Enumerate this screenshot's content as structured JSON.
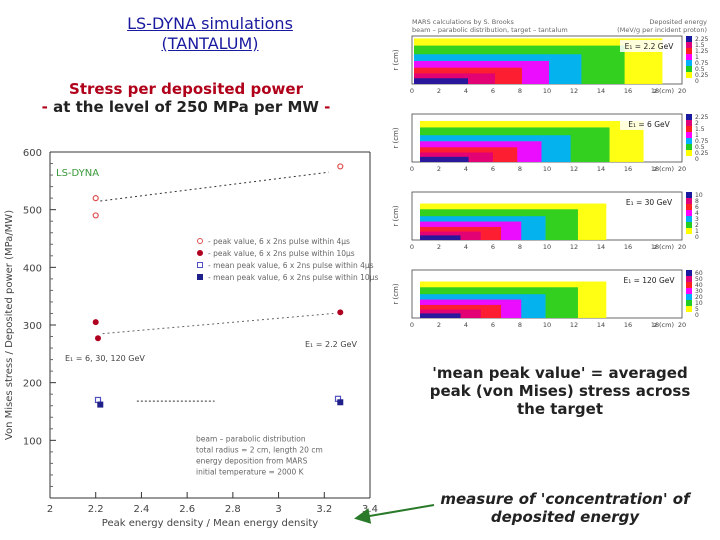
{
  "slide": {
    "title_line1": "LS-DYNA simulations",
    "title_line2": "(TANTALUM)",
    "subtitle_line1": "Stress per deposited power",
    "subtitle_line2_prefix": "- ",
    "subtitle_line2": "at the level of 250 MPa per MW",
    "subtitle_line2_suffix": " -",
    "note_mean_peak": "'mean peak value' = averaged peak (von Mises) stress across the target",
    "note_concentration": "measure of 'concentration' of deposited energy",
    "arrow_color": "#2a7a2a"
  },
  "chart_data": {
    "type": "scatter",
    "title": "",
    "xlabel": "Peak energy density / Mean energy density",
    "ylabel": "Von Mises stress / Deposited power (MPa/MW)",
    "xlim": [
      2,
      3.4
    ],
    "ylim": [
      0,
      600
    ],
    "x_ticks": [
      "2",
      "2.2",
      "2.4",
      "2.6",
      "2.8",
      "3",
      "3.2",
      "3.4"
    ],
    "y_ticks": [
      "100",
      "200",
      "300",
      "400",
      "500",
      "600"
    ],
    "y_ticks_values": [
      100,
      200,
      300,
      400,
      500,
      600
    ],
    "x_ticks_values": [
      2,
      2.2,
      2.4,
      2.6,
      2.8,
      3,
      3.2,
      3.4
    ],
    "code_label": "LS-DYNA",
    "series": [
      {
        "name": "peak value, 6 x 2ns pulse within 4µs",
        "marker": "open-circle",
        "color": "#e05050",
        "points": [
          {
            "x": 2.2,
            "y": 520
          },
          {
            "x": 2.2,
            "y": 490
          },
          {
            "x": 3.27,
            "y": 575
          }
        ]
      },
      {
        "name": "peak value, 6 x 2ns pulse within 10µs",
        "marker": "filled-circle",
        "color": "#b00020",
        "points": [
          {
            "x": 2.2,
            "y": 305
          },
          {
            "x": 2.21,
            "y": 277
          },
          {
            "x": 3.27,
            "y": 322
          }
        ]
      },
      {
        "name": "mean peak value, 6 x 2ns pulse within 4µs",
        "marker": "open-square",
        "color": "#5050c0",
        "points": [
          {
            "x": 2.21,
            "y": 170
          },
          {
            "x": 3.26,
            "y": 172
          }
        ]
      },
      {
        "name": "mean peak value, 6 x 2ns pulse within 10µs",
        "marker": "filled-square",
        "color": "#20208a",
        "points": [
          {
            "x": 2.22,
            "y": 162
          },
          {
            "x": 3.27,
            "y": 166
          }
        ]
      }
    ],
    "annotations": {
      "e1": "E₁ = 2.2 GeV",
      "e2": "E₁ = 6, 30, 120 GeV",
      "conditions_1": "beam – parabolic distribution",
      "conditions_2": "total radius = 2 cm, length 20 cm",
      "conditions_3": "energy deposition from MARS",
      "conditions_4": "initial temperature = 2000 K"
    }
  },
  "mars_panels": {
    "header_left": "MARS calculations by S. Brooks",
    "header_left_2": "beam – parabolic distribution, target – tantalum",
    "header_right": "Deposited energy",
    "header_right_2": "(MeV/g per incident proton)",
    "y_axis": "r (cm)",
    "x_axis": "z (cm)",
    "x_ticks": [
      "0",
      "2",
      "4",
      "6",
      "8",
      "10",
      "12",
      "14",
      "16",
      "18",
      "20"
    ],
    "panels": [
      {
        "energy": "E₁ = 2.2 GeV",
        "scale": [
          "2.25",
          "1.5",
          "1.25",
          "1",
          "0.75",
          "0.5",
          "0.25",
          "0"
        ]
      },
      {
        "energy": "E₁ = 6 GeV",
        "scale": [
          "2.25",
          "2",
          "1.5",
          "1",
          "0.75",
          "0.5",
          "0.25",
          "0"
        ]
      },
      {
        "energy": "E₁ = 30 GeV",
        "scale": [
          "10",
          "8",
          "6",
          "4",
          "3",
          "2",
          "1",
          "0"
        ]
      },
      {
        "energy": "E₁ = 120 GeV",
        "scale": [
          "60",
          "50",
          "40",
          "30",
          "20",
          "10",
          "5",
          "0"
        ]
      }
    ]
  }
}
